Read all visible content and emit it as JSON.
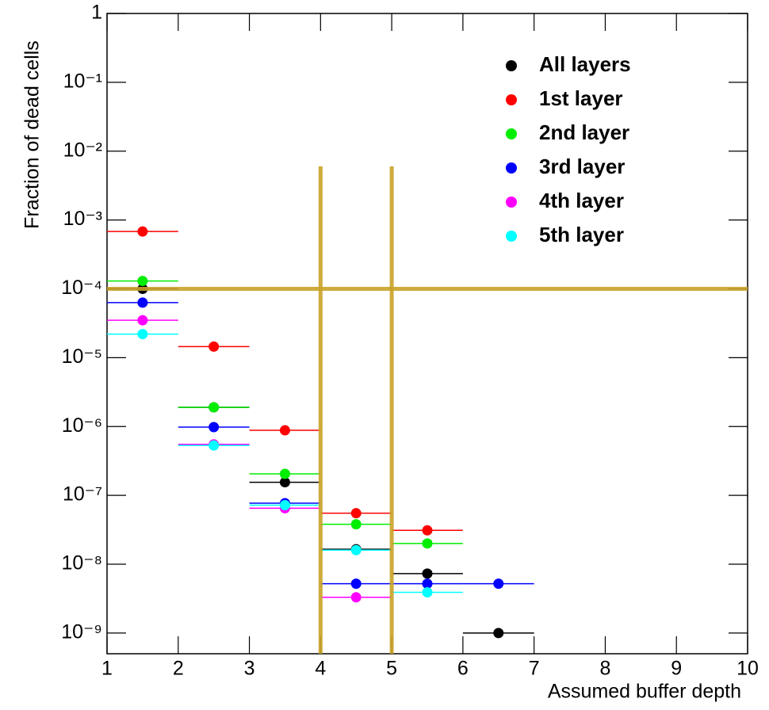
{
  "chart_data": {
    "type": "errorbar",
    "x_label": "Assumed buffer depth",
    "y_label": "Fraction of dead cells",
    "xlim": [
      1,
      10
    ],
    "xticks": [
      1,
      2,
      3,
      4,
      5,
      6,
      7,
      8,
      9,
      10
    ],
    "ylim": [
      5e-10,
      1
    ],
    "ylog": true,
    "yticks": [
      1,
      {
        "value": 0.1,
        "label": "10⁻¹"
      },
      {
        "value": 0.01,
        "label": "10⁻²"
      },
      {
        "value": 0.001,
        "label": "10⁻³"
      },
      {
        "value": 0.0001,
        "label": "10⁻⁴"
      },
      {
        "value": 1e-05,
        "label": "10⁻⁵"
      },
      {
        "value": 1e-06,
        "label": "10⁻⁶"
      },
      {
        "value": 1e-07,
        "label": "10⁻⁷"
      },
      {
        "value": 1e-08,
        "label": "10⁻⁸"
      },
      {
        "value": 1e-09,
        "label": "10⁻⁹"
      }
    ],
    "legend": "top-right",
    "series": [
      {
        "name": "All layers",
        "color": "#000000",
        "x": [
          1.5,
          2.5,
          3.5,
          4.5,
          5.5,
          6.5
        ],
        "xerr": [
          0.5,
          0.5,
          0.5,
          0.5,
          0.5,
          0.5
        ],
        "values": [
          0.0001,
          1.9e-06,
          1.55e-07,
          1.65e-08,
          7.3e-09,
          1e-09
        ]
      },
      {
        "name": "1st layer",
        "color": "#ff0000",
        "x": [
          1.5,
          2.5,
          3.5,
          4.5,
          5.5
        ],
        "xerr": [
          0.5,
          0.5,
          0.5,
          0.5,
          0.5
        ],
        "values": [
          0.00068,
          1.45e-05,
          8.8e-07,
          5.5e-08,
          3.1e-08
        ]
      },
      {
        "name": "2nd layer",
        "color": "#00ee00",
        "x": [
          1.5,
          2.5,
          3.5,
          4.5,
          5.5
        ],
        "xerr": [
          0.5,
          0.5,
          0.5,
          0.5,
          0.5
        ],
        "values": [
          0.00013,
          1.9e-06,
          2.05e-07,
          3.8e-08,
          2e-08
        ]
      },
      {
        "name": "3rd layer",
        "color": "#0000ff",
        "x": [
          1.5,
          2.5,
          3.5,
          4.5,
          5.5,
          6.5
        ],
        "xerr": [
          0.5,
          0.5,
          0.5,
          0.5,
          0.5,
          0.5
        ],
        "values": [
          6.3e-05,
          9.8e-07,
          7.7e-08,
          5.2e-09,
          5.2e-09,
          5.2e-09
        ]
      },
      {
        "name": "4th layer",
        "color": "#ff00ff",
        "x": [
          1.5,
          2.5,
          3.5,
          4.5
        ],
        "xerr": [
          0.5,
          0.5,
          0.5,
          0.5
        ],
        "values": [
          3.5e-05,
          5.5e-07,
          6.5e-08,
          3.3e-09
        ]
      },
      {
        "name": "5th layer",
        "color": "#00ffff",
        "x": [
          1.5,
          2.5,
          3.5,
          4.5,
          5.5
        ],
        "xerr": [
          0.5,
          0.5,
          0.5,
          0.5,
          0.5
        ],
        "values": [
          2.2e-05,
          5.3e-07,
          7.2e-08,
          1.6e-08,
          3.9e-09
        ]
      }
    ],
    "threshold_lines": {
      "color": "#c9a227",
      "vertical": [
        4,
        5
      ],
      "vertical_top": 0.006,
      "horizontal": [
        0.0001
      ]
    }
  }
}
